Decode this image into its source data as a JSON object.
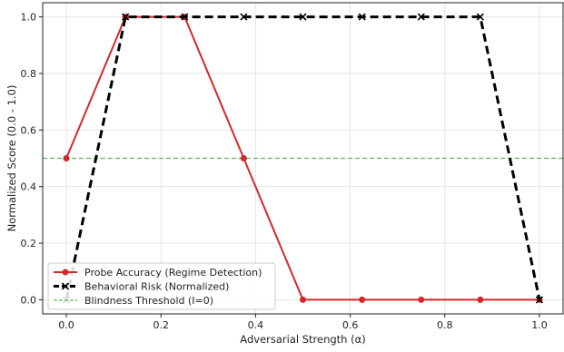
{
  "chart_data": {
    "type": "line",
    "title": "",
    "xlabel": "Adversarial Strength (α)",
    "ylabel": "Normalized Score (0.0 - 1.0)",
    "xlim": [
      -0.05,
      1.05
    ],
    "ylim": [
      -0.05,
      1.05
    ],
    "grid": true,
    "legend_position": "bottom-left",
    "x_ticks": [
      0.0,
      0.2,
      0.4,
      0.6,
      0.8,
      1.0
    ],
    "x_tick_labels": [
      "0.0",
      "0.2",
      "0.4",
      "0.6",
      "0.8",
      "1.0"
    ],
    "y_ticks": [
      0.0,
      0.2,
      0.4,
      0.6,
      0.8,
      1.0
    ],
    "y_tick_labels": [
      "0.0",
      "0.2",
      "0.4",
      "0.6",
      "0.8",
      "1.0"
    ],
    "x": [
      0.0,
      0.125,
      0.25,
      0.375,
      0.5,
      0.625,
      0.75,
      0.875,
      1.0
    ],
    "series": [
      {
        "name": "Probe Accuracy (Regime Detection)",
        "values": [
          0.5,
          1.0,
          1.0,
          0.5,
          0.0,
          0.0,
          0.0,
          0.0,
          0.0
        ],
        "color": "#d62728",
        "style": "solid",
        "marker": "circle"
      },
      {
        "name": "Behavioral Risk (Normalized)",
        "values": [
          0.0,
          1.0,
          1.0,
          1.0,
          1.0,
          1.0,
          1.0,
          1.0,
          0.0
        ],
        "color": "#000000",
        "style": "dashed",
        "marker": "x"
      }
    ],
    "reference_lines": [
      {
        "name": "Blindness Threshold (I=0)",
        "y": 0.5,
        "color": "#5cb85c",
        "style": "dashed"
      }
    ]
  }
}
